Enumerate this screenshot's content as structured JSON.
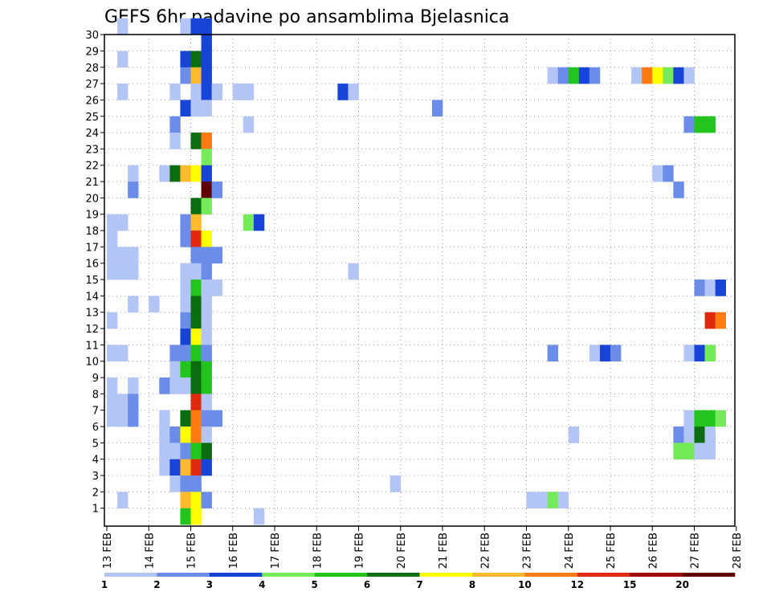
{
  "chart_data": {
    "type": "heatmap",
    "title": "GEFS 6hr padavine po ansamblima Bjelasnica",
    "x_ticks": [
      "13 FEB",
      "14 FEB",
      "15 FEB",
      "16 FEB",
      "17 FEB",
      "18 FEB",
      "19 FEB",
      "20 FEB",
      "21 FEB",
      "22 FEB",
      "23 FEB",
      "24 FEB",
      "25 FEB",
      "26 FEB",
      "27 FEB",
      "28 FEB"
    ],
    "y_ticks": [
      "1",
      "2",
      "3",
      "4",
      "5",
      "6",
      "7",
      "8",
      "9",
      "10",
      "11",
      "12",
      "13",
      "14",
      "15",
      "16",
      "17",
      "18",
      "19",
      "20",
      "21",
      "22",
      "23",
      "24",
      "25",
      "26",
      "27",
      "28",
      "29",
      "30"
    ],
    "grid": true,
    "legend_position": "bottom",
    "colorbar": {
      "labels": [
        "1",
        "2",
        "3",
        "4",
        "5",
        "6",
        "7",
        "8",
        "10",
        "12",
        "15",
        "20"
      ],
      "colors": [
        "#b3c5f5",
        "#6b8ce8",
        "#1744d6",
        "#76eb5a",
        "#23c41d",
        "#0b6d0f",
        "#ffff00",
        "#ffbb30",
        "#ff7a10",
        "#e02a10",
        "#a00b0b",
        "#600000"
      ]
    },
    "cells": [
      {
        "day": 13.25,
        "member": 30,
        "bin": 0
      },
      {
        "day": 13.25,
        "member": 28,
        "bin": 0
      },
      {
        "day": 13.25,
        "member": 26,
        "bin": 0
      },
      {
        "day": 13.0,
        "member": 18,
        "bin": 0
      },
      {
        "day": 13.25,
        "member": 18,
        "bin": 0
      },
      {
        "day": 13.0,
        "member": 17,
        "bin": 0
      },
      {
        "day": 13.0,
        "member": 16,
        "bin": 0
      },
      {
        "day": 13.25,
        "member": 16,
        "bin": 0
      },
      {
        "day": 13.5,
        "member": 16,
        "bin": 0
      },
      {
        "day": 13.0,
        "member": 15,
        "bin": 0
      },
      {
        "day": 13.25,
        "member": 15,
        "bin": 0
      },
      {
        "day": 13.5,
        "member": 15,
        "bin": 0
      },
      {
        "day": 13.5,
        "member": 21,
        "bin": 0
      },
      {
        "day": 13.5,
        "member": 20,
        "bin": 1
      },
      {
        "day": 13.5,
        "member": 13,
        "bin": 0
      },
      {
        "day": 13.0,
        "member": 12,
        "bin": 0
      },
      {
        "day": 13.0,
        "member": 10,
        "bin": 0
      },
      {
        "day": 13.25,
        "member": 10,
        "bin": 0
      },
      {
        "day": 13.0,
        "member": 8,
        "bin": 0
      },
      {
        "day": 13.5,
        "member": 8,
        "bin": 0
      },
      {
        "day": 13.0,
        "member": 7,
        "bin": 0
      },
      {
        "day": 13.25,
        "member": 7,
        "bin": 0
      },
      {
        "day": 13.5,
        "member": 7,
        "bin": 1
      },
      {
        "day": 13.0,
        "member": 6,
        "bin": 0
      },
      {
        "day": 13.25,
        "member": 6,
        "bin": 0
      },
      {
        "day": 13.5,
        "member": 6,
        "bin": 1
      },
      {
        "day": 13.25,
        "member": 1,
        "bin": 0
      },
      {
        "day": 14.0,
        "member": 13,
        "bin": 0
      },
      {
        "day": 14.25,
        "member": 8,
        "bin": 1
      },
      {
        "day": 14.25,
        "member": 21,
        "bin": 0
      },
      {
        "day": 14.25,
        "member": 6,
        "bin": 0
      },
      {
        "day": 14.25,
        "member": 5,
        "bin": 0
      },
      {
        "day": 14.25,
        "member": 4,
        "bin": 0
      },
      {
        "day": 14.25,
        "member": 3,
        "bin": 0
      },
      {
        "day": 14.5,
        "member": 26,
        "bin": 0
      },
      {
        "day": 14.5,
        "member": 24,
        "bin": 1
      },
      {
        "day": 14.5,
        "member": 23,
        "bin": 0
      },
      {
        "day": 14.5,
        "member": 21,
        "bin": 5
      },
      {
        "day": 14.5,
        "member": 10,
        "bin": 1
      },
      {
        "day": 14.5,
        "member": 9,
        "bin": 0
      },
      {
        "day": 14.5,
        "member": 8,
        "bin": 0
      },
      {
        "day": 14.5,
        "member": 5,
        "bin": 1
      },
      {
        "day": 14.5,
        "member": 4,
        "bin": 0
      },
      {
        "day": 14.5,
        "member": 3,
        "bin": 2
      },
      {
        "day": 14.5,
        "member": 2,
        "bin": 0
      },
      {
        "day": 14.75,
        "member": 30,
        "bin": 0
      },
      {
        "day": 14.75,
        "member": 28,
        "bin": 2
      },
      {
        "day": 14.75,
        "member": 27,
        "bin": 1
      },
      {
        "day": 14.75,
        "member": 25,
        "bin": 2
      },
      {
        "day": 14.75,
        "member": 21,
        "bin": 7
      },
      {
        "day": 14.75,
        "member": 18,
        "bin": 1
      },
      {
        "day": 14.75,
        "member": 17,
        "bin": 1
      },
      {
        "day": 14.75,
        "member": 15,
        "bin": 0
      },
      {
        "day": 14.75,
        "member": 14,
        "bin": 0
      },
      {
        "day": 14.75,
        "member": 13,
        "bin": 0
      },
      {
        "day": 14.75,
        "member": 12,
        "bin": 1
      },
      {
        "day": 14.75,
        "member": 11,
        "bin": 2
      },
      {
        "day": 14.75,
        "member": 10,
        "bin": 1
      },
      {
        "day": 14.75,
        "member": 9,
        "bin": 4
      },
      {
        "day": 14.75,
        "member": 8,
        "bin": 0
      },
      {
        "day": 14.75,
        "member": 6,
        "bin": 5
      },
      {
        "day": 14.75,
        "member": 5,
        "bin": 6
      },
      {
        "day": 14.75,
        "member": 4,
        "bin": 1
      },
      {
        "day": 14.75,
        "member": 3,
        "bin": 7
      },
      {
        "day": 14.75,
        "member": 2,
        "bin": 1
      },
      {
        "day": 14.75,
        "member": 1,
        "bin": 7
      },
      {
        "day": 14.75,
        "member": 0,
        "bin": 4
      },
      {
        "day": 15.0,
        "member": 30,
        "bin": 2
      },
      {
        "day": 15.0,
        "member": 28,
        "bin": 5
      },
      {
        "day": 15.0,
        "member": 27,
        "bin": 7
      },
      {
        "day": 15.0,
        "member": 26,
        "bin": 0
      },
      {
        "day": 15.0,
        "member": 25,
        "bin": 0
      },
      {
        "day": 15.0,
        "member": 23,
        "bin": 5
      },
      {
        "day": 15.0,
        "member": 21,
        "bin": 6
      },
      {
        "day": 15.0,
        "member": 19,
        "bin": 5
      },
      {
        "day": 15.0,
        "member": 18,
        "bin": 7
      },
      {
        "day": 15.0,
        "member": 17,
        "bin": 9
      },
      {
        "day": 15.0,
        "member": 16,
        "bin": 1
      },
      {
        "day": 15.0,
        "member": 15,
        "bin": 0
      },
      {
        "day": 15.0,
        "member": 14,
        "bin": 4
      },
      {
        "day": 15.0,
        "member": 13,
        "bin": 5
      },
      {
        "day": 15.0,
        "member": 12,
        "bin": 5
      },
      {
        "day": 15.0,
        "member": 11,
        "bin": 6
      },
      {
        "day": 15.0,
        "member": 10,
        "bin": 4
      },
      {
        "day": 15.0,
        "member": 9,
        "bin": 5
      },
      {
        "day": 15.0,
        "member": 8,
        "bin": 5
      },
      {
        "day": 15.0,
        "member": 7,
        "bin": 9
      },
      {
        "day": 15.0,
        "member": 6,
        "bin": 8
      },
      {
        "day": 15.0,
        "member": 5,
        "bin": 8
      },
      {
        "day": 15.0,
        "member": 4,
        "bin": 4
      },
      {
        "day": 15.0,
        "member": 3,
        "bin": 9
      },
      {
        "day": 15.0,
        "member": 2,
        "bin": 1
      },
      {
        "day": 15.0,
        "member": 1,
        "bin": 6
      },
      {
        "day": 15.0,
        "member": 0,
        "bin": 6
      },
      {
        "day": 15.25,
        "member": 30,
        "bin": 2
      },
      {
        "day": 15.25,
        "member": 29,
        "bin": 2
      },
      {
        "day": 15.25,
        "member": 28,
        "bin": 2
      },
      {
        "day": 15.25,
        "member": 27,
        "bin": 2
      },
      {
        "day": 15.25,
        "member": 26,
        "bin": 2
      },
      {
        "day": 15.25,
        "member": 25,
        "bin": 0
      },
      {
        "day": 15.25,
        "member": 23,
        "bin": 8
      },
      {
        "day": 15.25,
        "member": 22,
        "bin": 3
      },
      {
        "day": 15.25,
        "member": 21,
        "bin": 2
      },
      {
        "day": 15.25,
        "member": 20,
        "bin": 11
      },
      {
        "day": 15.25,
        "member": 19,
        "bin": 3
      },
      {
        "day": 15.25,
        "member": 17,
        "bin": 6
      },
      {
        "day": 15.25,
        "member": 16,
        "bin": 1
      },
      {
        "day": 15.25,
        "member": 15,
        "bin": 1
      },
      {
        "day": 15.25,
        "member": 14,
        "bin": 0
      },
      {
        "day": 15.25,
        "member": 13,
        "bin": 0
      },
      {
        "day": 15.25,
        "member": 12,
        "bin": 0
      },
      {
        "day": 15.25,
        "member": 11,
        "bin": 0
      },
      {
        "day": 15.25,
        "member": 10,
        "bin": 1
      },
      {
        "day": 15.25,
        "member": 9,
        "bin": 4
      },
      {
        "day": 15.25,
        "member": 8,
        "bin": 4
      },
      {
        "day": 15.25,
        "member": 7,
        "bin": 0
      },
      {
        "day": 15.25,
        "member": 6,
        "bin": 1
      },
      {
        "day": 15.25,
        "member": 5,
        "bin": 0
      },
      {
        "day": 15.25,
        "member": 4,
        "bin": 5
      },
      {
        "day": 15.25,
        "member": 3,
        "bin": 2
      },
      {
        "day": 15.25,
        "member": 1,
        "bin": 1
      },
      {
        "day": 15.5,
        "member": 26,
        "bin": 0
      },
      {
        "day": 15.5,
        "member": 20,
        "bin": 1
      },
      {
        "day": 15.5,
        "member": 16,
        "bin": 1
      },
      {
        "day": 15.5,
        "member": 14,
        "bin": 0
      },
      {
        "day": 15.5,
        "member": 6,
        "bin": 1
      },
      {
        "day": 16.0,
        "member": 26,
        "bin": 0
      },
      {
        "day": 16.25,
        "member": 26,
        "bin": 0
      },
      {
        "day": 16.25,
        "member": 24,
        "bin": 0
      },
      {
        "day": 16.25,
        "member": 18,
        "bin": 3
      },
      {
        "day": 16.5,
        "member": 18,
        "bin": 2
      },
      {
        "day": 16.5,
        "member": 0,
        "bin": 0
      },
      {
        "day": 18.5,
        "member": 26,
        "bin": 2
      },
      {
        "day": 18.75,
        "member": 26,
        "bin": 0
      },
      {
        "day": 18.75,
        "member": 15,
        "bin": 0
      },
      {
        "day": 19.75,
        "member": 2,
        "bin": 0
      },
      {
        "day": 20.75,
        "member": 25,
        "bin": 1
      },
      {
        "day": 23.0,
        "member": 1,
        "bin": 0
      },
      {
        "day": 23.25,
        "member": 1,
        "bin": 0
      },
      {
        "day": 23.5,
        "member": 1,
        "bin": 3
      },
      {
        "day": 23.75,
        "member": 1,
        "bin": 0
      },
      {
        "day": 23.5,
        "member": 10,
        "bin": 1
      },
      {
        "day": 23.5,
        "member": 27,
        "bin": 0
      },
      {
        "day": 23.75,
        "member": 27,
        "bin": 1
      },
      {
        "day": 24.0,
        "member": 27,
        "bin": 4
      },
      {
        "day": 24.25,
        "member": 27,
        "bin": 2
      },
      {
        "day": 24.5,
        "member": 27,
        "bin": 1
      },
      {
        "day": 24.0,
        "member": 5,
        "bin": 0
      },
      {
        "day": 24.5,
        "member": 10,
        "bin": 0
      },
      {
        "day": 24.75,
        "member": 10,
        "bin": 2
      },
      {
        "day": 25.0,
        "member": 10,
        "bin": 1
      },
      {
        "day": 25.5,
        "member": 27,
        "bin": 0
      },
      {
        "day": 25.75,
        "member": 27,
        "bin": 8
      },
      {
        "day": 26.0,
        "member": 27,
        "bin": 6
      },
      {
        "day": 26.25,
        "member": 27,
        "bin": 3
      },
      {
        "day": 26.5,
        "member": 27,
        "bin": 2
      },
      {
        "day": 26.75,
        "member": 27,
        "bin": 0
      },
      {
        "day": 26.0,
        "member": 21,
        "bin": 0
      },
      {
        "day": 26.25,
        "member": 21,
        "bin": 1
      },
      {
        "day": 26.5,
        "member": 20,
        "bin": 1
      },
      {
        "day": 26.75,
        "member": 24,
        "bin": 1
      },
      {
        "day": 27.0,
        "member": 24,
        "bin": 4
      },
      {
        "day": 27.25,
        "member": 24,
        "bin": 4
      },
      {
        "day": 27.0,
        "member": 14,
        "bin": 1
      },
      {
        "day": 27.25,
        "member": 14,
        "bin": 0
      },
      {
        "day": 27.5,
        "member": 14,
        "bin": 2
      },
      {
        "day": 27.25,
        "member": 12,
        "bin": 9
      },
      {
        "day": 27.5,
        "member": 12,
        "bin": 8
      },
      {
        "day": 26.75,
        "member": 10,
        "bin": 0
      },
      {
        "day": 27.0,
        "member": 10,
        "bin": 2
      },
      {
        "day": 27.25,
        "member": 10,
        "bin": 3
      },
      {
        "day": 26.75,
        "member": 6,
        "bin": 0
      },
      {
        "day": 27.0,
        "member": 6,
        "bin": 4
      },
      {
        "day": 27.25,
        "member": 6,
        "bin": 4
      },
      {
        "day": 27.5,
        "member": 6,
        "bin": 3
      },
      {
        "day": 26.5,
        "member": 5,
        "bin": 1
      },
      {
        "day": 26.75,
        "member": 5,
        "bin": 0
      },
      {
        "day": 27.0,
        "member": 5,
        "bin": 5
      },
      {
        "day": 27.25,
        "member": 5,
        "bin": 0
      },
      {
        "day": 26.5,
        "member": 4,
        "bin": 3
      },
      {
        "day": 26.75,
        "member": 4,
        "bin": 3
      },
      {
        "day": 27.0,
        "member": 4,
        "bin": 0
      },
      {
        "day": 27.25,
        "member": 4,
        "bin": 0
      }
    ]
  }
}
